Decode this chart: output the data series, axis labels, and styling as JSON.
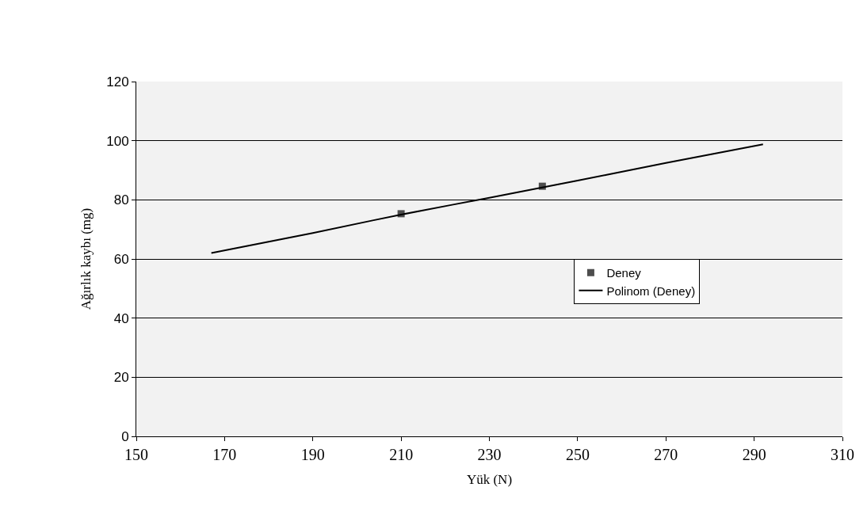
{
  "chart_data": {
    "type": "scatter",
    "xlabel": "Yük (N)",
    "ylabel": "Ağırlık kaybı (mg)",
    "series": [
      {
        "name": "Deney",
        "color": "#4d4d4d",
        "marker": "square",
        "x": [
          210,
          242
        ],
        "values": [
          75.3,
          84.6
        ]
      },
      {
        "name": "Polinom (Deney)",
        "type": "line",
        "color": "#000000",
        "marker": "none",
        "x": [
          167,
          190,
          210,
          230,
          250,
          270,
          292
        ],
        "values": [
          62,
          68.8,
          75,
          80.7,
          86.5,
          92.5,
          98.8
        ]
      }
    ],
    "xlim": [
      150,
      310
    ],
    "xticks": [
      150,
      170,
      190,
      210,
      230,
      250,
      270,
      290,
      310
    ],
    "ylim": [
      0,
      120
    ],
    "yticks": [
      0,
      20,
      40,
      60,
      80,
      100,
      120
    ],
    "grid": "y",
    "legend": "right"
  }
}
